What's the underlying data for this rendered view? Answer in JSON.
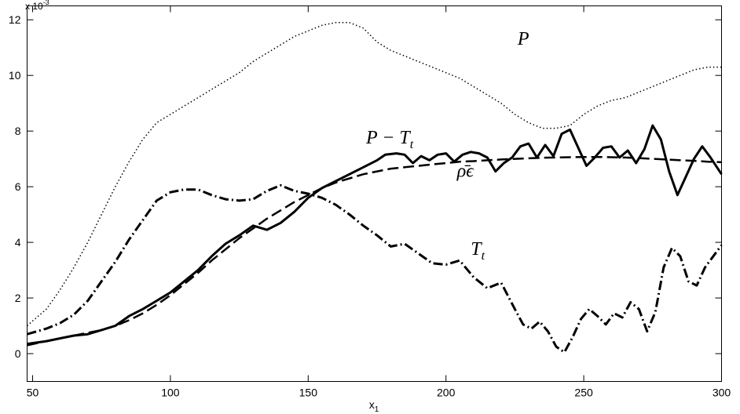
{
  "chart_data": {
    "type": "line",
    "xlabel": "x",
    "xlabel_subscript": "1",
    "ylabel": "",
    "y_scale_prefix": "x 10",
    "y_scale_exponent": "-3",
    "xlim": [
      48,
      300
    ],
    "ylim": [
      -1,
      12.5
    ],
    "xticks": [
      50,
      100,
      150,
      200,
      250,
      300
    ],
    "yticks": [
      0,
      2,
      4,
      6,
      8,
      10,
      12
    ],
    "grid": false,
    "series": [
      {
        "name": "P",
        "label_parts": {
          "main": "P",
          "sub": ""
        },
        "label_pos": [
          226,
          11.1
        ],
        "style": "dotted",
        "width": 1.5,
        "color": "#000000",
        "x": [
          48,
          55,
          60,
          65,
          70,
          75,
          80,
          85,
          90,
          95,
          100,
          105,
          110,
          115,
          120,
          125,
          130,
          135,
          140,
          145,
          150,
          155,
          160,
          165,
          170,
          175,
          180,
          185,
          190,
          195,
          200,
          205,
          210,
          215,
          220,
          225,
          230,
          235,
          240,
          245,
          250,
          255,
          260,
          265,
          270,
          275,
          280,
          285,
          290,
          295,
          300
        ],
        "y": [
          1.0,
          1.6,
          2.3,
          3.1,
          4.0,
          5.0,
          6.0,
          6.9,
          7.7,
          8.3,
          8.6,
          8.9,
          9.2,
          9.5,
          9.8,
          10.1,
          10.5,
          10.8,
          11.1,
          11.4,
          11.6,
          11.8,
          11.9,
          11.9,
          11.7,
          11.2,
          10.9,
          10.7,
          10.5,
          10.3,
          10.1,
          9.9,
          9.6,
          9.3,
          9.0,
          8.6,
          8.3,
          8.1,
          8.1,
          8.2,
          8.6,
          8.9,
          9.1,
          9.2,
          9.4,
          9.6,
          9.8,
          10.0,
          10.2,
          10.3,
          10.3
        ]
      },
      {
        "name": "P − T",
        "label_parts": {
          "main": "P − T",
          "sub": "t"
        },
        "label_pos": [
          171,
          7.55
        ],
        "style": "solid",
        "width": 3,
        "color": "#000000",
        "x": [
          48,
          55,
          60,
          65,
          70,
          75,
          80,
          85,
          90,
          95,
          100,
          105,
          110,
          115,
          120,
          125,
          130,
          135,
          140,
          145,
          150,
          155,
          160,
          165,
          170,
          175,
          178,
          182,
          185,
          188,
          191,
          194,
          197,
          200,
          203,
          206,
          209,
          212,
          215,
          218,
          221,
          224,
          227,
          230,
          233,
          236,
          239,
          242,
          245,
          248,
          251,
          254,
          257,
          260,
          263,
          266,
          269,
          272,
          275,
          278,
          281,
          284,
          287,
          290,
          293,
          296,
          300
        ],
        "y": [
          0.35,
          0.45,
          0.55,
          0.65,
          0.7,
          0.85,
          1.0,
          1.35,
          1.6,
          1.9,
          2.2,
          2.6,
          3.0,
          3.5,
          3.95,
          4.25,
          4.6,
          4.45,
          4.7,
          5.1,
          5.6,
          5.95,
          6.2,
          6.45,
          6.7,
          6.95,
          7.15,
          7.2,
          7.15,
          6.85,
          7.1,
          6.95,
          7.15,
          7.2,
          6.9,
          7.15,
          7.25,
          7.2,
          7.05,
          6.55,
          6.85,
          7.05,
          7.45,
          7.55,
          7.05,
          7.5,
          7.1,
          7.9,
          8.05,
          7.4,
          6.75,
          7.05,
          7.4,
          7.45,
          7.05,
          7.3,
          6.85,
          7.35,
          8.2,
          7.7,
          6.55,
          5.7,
          6.35,
          7.0,
          7.45,
          7.05,
          6.45
        ]
      },
      {
        "name": "ρ̄ϵ",
        "label_parts": {
          "main": "ρ̄ϵ",
          "sub": ""
        },
        "label_pos": [
          204,
          6.35
        ],
        "style": "dashed",
        "width": 2.5,
        "color": "#000000",
        "x": [
          48,
          55,
          60,
          65,
          70,
          75,
          80,
          85,
          90,
          95,
          100,
          105,
          110,
          115,
          120,
          125,
          130,
          135,
          140,
          145,
          150,
          155,
          160,
          165,
          170,
          175,
          180,
          185,
          190,
          195,
          200,
          205,
          210,
          215,
          220,
          225,
          230,
          235,
          240,
          245,
          250,
          255,
          260,
          265,
          270,
          275,
          280,
          285,
          290,
          295,
          300
        ],
        "y": [
          0.3,
          0.45,
          0.55,
          0.65,
          0.75,
          0.85,
          1.0,
          1.2,
          1.45,
          1.75,
          2.1,
          2.5,
          2.9,
          3.35,
          3.75,
          4.15,
          4.5,
          4.85,
          5.15,
          5.45,
          5.7,
          5.95,
          6.15,
          6.3,
          6.45,
          6.55,
          6.65,
          6.7,
          6.75,
          6.8,
          6.85,
          6.9,
          6.92,
          6.95,
          6.98,
          7.0,
          7.02,
          7.04,
          7.05,
          7.06,
          7.07,
          7.07,
          7.06,
          7.05,
          7.03,
          7.0,
          6.98,
          6.95,
          6.93,
          6.9,
          6.88
        ]
      },
      {
        "name": "T",
        "label_parts": {
          "main": "T",
          "sub": "t"
        },
        "label_pos": [
          209,
          3.55
        ],
        "style": "dashdot",
        "width": 3,
        "color": "#000000",
        "x": [
          48,
          55,
          60,
          65,
          70,
          75,
          80,
          85,
          90,
          95,
          100,
          105,
          110,
          115,
          120,
          125,
          130,
          135,
          140,
          145,
          150,
          155,
          160,
          165,
          170,
          175,
          180,
          185,
          190,
          195,
          200,
          205,
          210,
          215,
          220,
          225,
          228,
          231,
          234,
          237,
          240,
          243,
          246,
          249,
          252,
          255,
          258,
          261,
          264,
          267,
          270,
          273,
          276,
          279,
          282,
          285,
          288,
          291,
          294,
          297,
          300
        ],
        "y": [
          0.7,
          0.9,
          1.1,
          1.4,
          1.9,
          2.6,
          3.3,
          4.1,
          4.8,
          5.5,
          5.8,
          5.9,
          5.9,
          5.7,
          5.55,
          5.5,
          5.55,
          5.85,
          6.05,
          5.85,
          5.75,
          5.6,
          5.35,
          5.0,
          4.6,
          4.25,
          3.85,
          3.95,
          3.6,
          3.25,
          3.2,
          3.35,
          2.75,
          2.35,
          2.55,
          1.6,
          1.05,
          0.9,
          1.15,
          0.8,
          0.25,
          0.05,
          0.6,
          1.25,
          1.6,
          1.35,
          1.05,
          1.45,
          1.3,
          1.85,
          1.6,
          0.8,
          1.5,
          3.1,
          3.8,
          3.5,
          2.6,
          2.45,
          3.1,
          3.5,
          3.9
        ]
      }
    ]
  }
}
